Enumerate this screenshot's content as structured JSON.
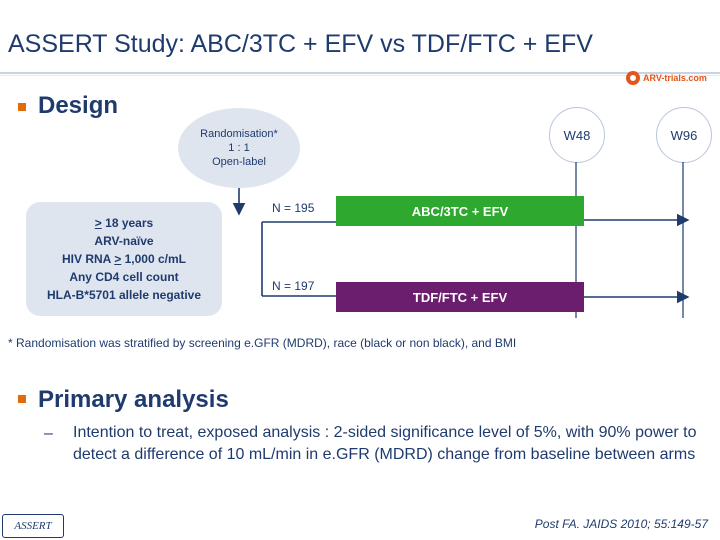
{
  "header": {
    "title": "ASSERT Study: ABC/3TC + EFV vs TDF/FTC + EFV",
    "logo_text": "ARV-trials.com",
    "logo_icon": "arv-trials-logo-icon"
  },
  "design": {
    "heading": "Design",
    "randomisation": [
      "Randomisation*",
      "1 : 1",
      "Open-label"
    ],
    "weeks": [
      "W48",
      "W96"
    ],
    "criteria": [
      "> 18 years",
      "ARV-naïve",
      "HIV RNA > 1,000 c/mL",
      "Any CD4 cell count",
      "HLA-B*5701 allele negative"
    ],
    "arms": [
      {
        "n_label": "N = 195",
        "name": "ABC/3TC + EFV",
        "color": "#2ea82e"
      },
      {
        "n_label": "N = 197",
        "name": "TDF/FTC + EFV",
        "color": "#6b1e6e"
      }
    ],
    "footnote": "* Randomisation was stratified by screening e.GFR (MDRD), race (black or non black), and BMI"
  },
  "primary": {
    "heading": "Primary analysis",
    "dash": "–",
    "text": "Intention to treat, exposed analysis : 2-sided significance level of 5%, with 90% power to detect a difference of 10 mL/min in e.GFR (MDRD) change from baseline between arms"
  },
  "footer": {
    "study_logo": "ASSERT",
    "citation": "Post FA. JAIDS 2010; 55:149-57"
  },
  "colors": {
    "title": "#1f3b6e",
    "bullet": "#e36c0a",
    "arm_abc": "#2ea82e",
    "arm_tdf": "#6b1e6e"
  }
}
